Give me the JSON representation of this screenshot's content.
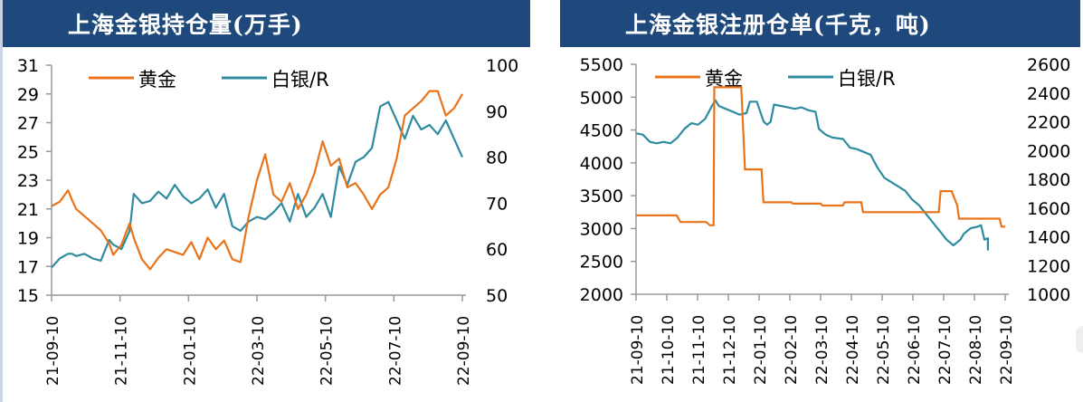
{
  "colors": {
    "gold": "#e8731a",
    "silver": "#2e8ba0",
    "title_bg": "#1f497d",
    "axis": "#999999"
  },
  "chart_data": [
    {
      "type": "line",
      "title": "上海金银持仓量(万手)",
      "legend": [
        {
          "name": "黄金",
          "axis": "left"
        },
        {
          "name": "白银/R",
          "axis": "right"
        }
      ],
      "legend_position": "top",
      "grid": false,
      "x_tick_labels": [
        "21-09-10",
        "21-11-10",
        "22-01-10",
        "22-03-10",
        "22-05-10",
        "22-07-10",
        "22-09-10"
      ],
      "y_left": {
        "ticks": [
          15,
          17,
          19,
          21,
          23,
          25,
          27,
          29,
          31
        ],
        "range": [
          15,
          31
        ]
      },
      "y_right": {
        "ticks": [
          50,
          60,
          70,
          80,
          90,
          100
        ],
        "range": [
          50,
          100
        ]
      },
      "x": [
        0,
        0.02,
        0.04,
        0.05,
        0.06,
        0.08,
        0.1,
        0.12,
        0.14,
        0.15,
        0.17,
        0.19,
        0.2,
        0.22,
        0.24,
        0.26,
        0.28,
        0.3,
        0.32,
        0.34,
        0.36,
        0.38,
        0.4,
        0.42,
        0.44,
        0.46,
        0.48,
        0.5,
        0.52,
        0.54,
        0.56,
        0.58,
        0.6,
        0.62,
        0.64,
        0.66,
        0.68,
        0.7,
        0.72,
        0.74,
        0.76,
        0.78,
        0.8,
        0.82,
        0.84,
        0.86,
        0.88,
        0.9,
        0.92,
        0.94,
        0.96,
        0.98,
        1.0
      ],
      "series": [
        {
          "name": "黄金",
          "axis": "left",
          "values": [
            21.2,
            21.5,
            22.3,
            21.6,
            21.0,
            20.5,
            20.0,
            19.5,
            18.6,
            17.8,
            18.5,
            20.0,
            19.0,
            17.5,
            16.8,
            17.6,
            18.2,
            18.0,
            17.8,
            18.7,
            17.5,
            19.0,
            18.2,
            18.8,
            17.5,
            17.3,
            20.5,
            23.0,
            24.8,
            22.0,
            21.5,
            22.8,
            21.0,
            22.0,
            23.5,
            25.7,
            24.0,
            24.5,
            22.5,
            22.8,
            22.0,
            21.0,
            22.0,
            22.5,
            24.5,
            27.5,
            28.0,
            28.5,
            29.2,
            29.2,
            27.5,
            28.0,
            29.0
          ]
        },
        {
          "name": "白银/R",
          "axis": "right",
          "values": [
            56,
            58,
            59,
            59,
            58.5,
            59,
            58,
            57.5,
            62,
            61,
            60,
            64,
            72,
            70,
            70.5,
            72.5,
            71,
            74,
            71.5,
            70,
            71,
            73,
            69,
            72,
            65,
            64,
            66,
            67,
            66.5,
            68,
            70,
            66,
            72,
            67,
            69,
            72,
            67,
            78,
            74,
            79,
            80,
            82,
            91,
            92,
            88,
            84,
            89,
            86,
            87,
            85,
            88,
            84,
            80
          ]
        }
      ]
    },
    {
      "type": "line",
      "title": "上海金银注册仓单(千克，吨)",
      "legend": [
        {
          "name": "黄金",
          "axis": "left"
        },
        {
          "name": "白银/R",
          "axis": "right"
        }
      ],
      "legend_position": "top",
      "grid": false,
      "x_tick_labels": [
        "21-09-10",
        "21-10-10",
        "21-11-10",
        "21-12-10",
        "22-01-10",
        "22-02-10",
        "22-03-10",
        "22-04-10",
        "22-05-10",
        "22-06-10",
        "22-07-10",
        "22-08-10",
        "22-09-10"
      ],
      "y_left": {
        "ticks": [
          2000,
          2500,
          3000,
          3500,
          4000,
          4500,
          5000,
          5500
        ],
        "range": [
          2000,
          5500
        ]
      },
      "y_right": {
        "ticks": [
          1000,
          1200,
          1400,
          1600,
          1800,
          2000,
          2200,
          2400,
          2600
        ],
        "range": [
          1000,
          2600
        ]
      },
      "gold_steps": [
        [
          0,
          3200
        ],
        [
          0.11,
          3200
        ],
        [
          0.12,
          3100
        ],
        [
          0.19,
          3100
        ],
        [
          0.2,
          3050
        ],
        [
          0.21,
          3050
        ],
        [
          0.212,
          5150
        ],
        [
          0.285,
          5150
        ],
        [
          0.295,
          3900
        ],
        [
          0.34,
          3900
        ],
        [
          0.345,
          3400
        ],
        [
          0.42,
          3400
        ],
        [
          0.425,
          3380
        ],
        [
          0.5,
          3380
        ],
        [
          0.505,
          3350
        ],
        [
          0.56,
          3350
        ],
        [
          0.565,
          3400
        ],
        [
          0.61,
          3400
        ],
        [
          0.615,
          3250
        ],
        [
          0.82,
          3250
        ],
        [
          0.825,
          3570
        ],
        [
          0.855,
          3570
        ],
        [
          0.87,
          3350
        ],
        [
          0.875,
          3150
        ],
        [
          0.985,
          3150
        ],
        [
          0.99,
          3030
        ],
        [
          1.0,
          3030
        ]
      ],
      "silver_points": [
        [
          0,
          2120
        ],
        [
          0.02,
          2110
        ],
        [
          0.04,
          2060
        ],
        [
          0.06,
          2050
        ],
        [
          0.08,
          2060
        ],
        [
          0.1,
          2050
        ],
        [
          0.12,
          2090
        ],
        [
          0.14,
          2150
        ],
        [
          0.16,
          2190
        ],
        [
          0.18,
          2180
        ],
        [
          0.2,
          2220
        ],
        [
          0.22,
          2310
        ],
        [
          0.23,
          2350
        ],
        [
          0.24,
          2310
        ],
        [
          0.26,
          2290
        ],
        [
          0.28,
          2270
        ],
        [
          0.3,
          2250
        ],
        [
          0.32,
          2260
        ],
        [
          0.33,
          2340
        ],
        [
          0.35,
          2340
        ],
        [
          0.37,
          2200
        ],
        [
          0.38,
          2180
        ],
        [
          0.39,
          2200
        ],
        [
          0.4,
          2320
        ],
        [
          0.42,
          2310
        ],
        [
          0.44,
          2300
        ],
        [
          0.46,
          2290
        ],
        [
          0.48,
          2300
        ],
        [
          0.5,
          2280
        ],
        [
          0.52,
          2270
        ],
        [
          0.53,
          2150
        ],
        [
          0.55,
          2110
        ],
        [
          0.57,
          2090
        ],
        [
          0.6,
          2080
        ],
        [
          0.62,
          2020
        ],
        [
          0.64,
          2010
        ],
        [
          0.66,
          1990
        ],
        [
          0.68,
          1970
        ],
        [
          0.7,
          1880
        ],
        [
          0.72,
          1810
        ],
        [
          0.74,
          1780
        ],
        [
          0.76,
          1750
        ],
        [
          0.78,
          1720
        ],
        [
          0.8,
          1660
        ],
        [
          0.82,
          1620
        ],
        [
          0.84,
          1560
        ],
        [
          0.86,
          1500
        ],
        [
          0.88,
          1440
        ],
        [
          0.9,
          1380
        ],
        [
          0.92,
          1340
        ],
        [
          0.94,
          1380
        ],
        [
          0.95,
          1420
        ],
        [
          0.97,
          1460
        ],
        [
          0.99,
          1470
        ],
        [
          1.0,
          1480
        ],
        [
          1.01,
          1380
        ],
        [
          1.03,
          1390
        ],
        [
          1.05,
          1350
        ],
        [
          1.06,
          1310
        ],
        [
          1.07,
          1340
        ]
      ]
    }
  ]
}
